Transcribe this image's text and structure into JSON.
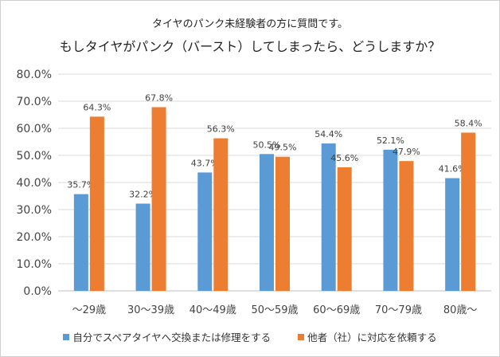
{
  "chart_data": {
    "type": "bar",
    "title": "タイヤのパンク未経験者の方に質問です。",
    "subtitle": "もしタイヤがパンク（バースト）してしまったら、どうしますか？",
    "categories": [
      "〜29歳",
      "30〜39歳",
      "40〜49歳",
      "50〜59歳",
      "60〜69歳",
      "70〜79歳",
      "80歳〜"
    ],
    "series": [
      {
        "name": "自分でスペアタイヤへ交換または修理をする",
        "color": "#5b9bd5",
        "values": [
          35.7,
          32.2,
          43.7,
          50.5,
          54.4,
          52.1,
          41.6
        ]
      },
      {
        "name": "他者（社）に対応を依頼する",
        "color": "#ed7d31",
        "values": [
          64.3,
          67.8,
          56.3,
          49.5,
          45.6,
          47.9,
          58.4
        ]
      }
    ],
    "ylim": [
      0,
      80
    ],
    "yticks": [
      "0.0%",
      "10.0%",
      "20.0%",
      "30.0%",
      "40.0%",
      "50.0%",
      "60.0%",
      "70.0%",
      "80.0%"
    ],
    "data_labels": [
      [
        "35.7%",
        "32.2%",
        "43.7%",
        "50.5%",
        "54.4%",
        "52.1%",
        "41.6%"
      ],
      [
        "64.3%",
        "67.8%",
        "56.3%",
        "49.5%",
        "45.6%",
        "47.9%",
        "58.4%"
      ]
    ],
    "grid": true,
    "legend_position": "bottom"
  }
}
